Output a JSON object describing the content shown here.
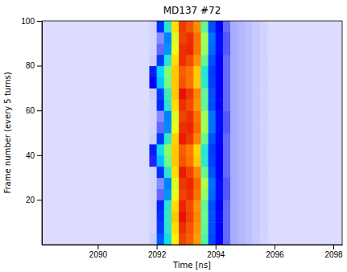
{
  "chart_data": {
    "type": "heatmap",
    "title": "MD137 #72",
    "x_label": "Time [ns]",
    "y_label": "Frame number (every 5 turns)",
    "xlim": [
      2088.1,
      2098.3
    ],
    "ylim": [
      0,
      100
    ],
    "xticks": [
      2090,
      2092,
      2094,
      2096,
      2098
    ],
    "yticks": [
      20,
      40,
      60,
      80,
      100
    ],
    "color_range": [
      0,
      1
    ],
    "x_edges": [
      2091.75,
      2092.0,
      2092.25,
      2092.5,
      2092.75,
      2093.0,
      2093.25,
      2093.5,
      2093.75,
      2094.0,
      2094.25,
      2094.5,
      2094.75,
      2095.0,
      2095.25,
      2095.5,
      2095.75
    ],
    "y_edges": [
      0,
      5,
      10,
      15,
      20,
      25,
      30,
      35,
      40,
      45,
      50,
      55,
      60,
      65,
      70,
      75,
      80,
      85,
      90,
      95,
      100
    ],
    "values": [
      [
        0.03,
        0.35,
        0.52,
        0.76,
        0.93,
        0.9,
        0.84,
        0.6,
        0.32,
        0.2,
        0.14,
        0.1,
        0.08,
        0.06,
        0.04,
        0.02
      ],
      [
        0.02,
        0.3,
        0.55,
        0.78,
        0.95,
        0.91,
        0.85,
        0.62,
        0.33,
        0.2,
        0.14,
        0.1,
        0.08,
        0.06,
        0.04,
        0.02
      ],
      [
        0.02,
        0.28,
        0.56,
        0.8,
        0.98,
        0.93,
        0.86,
        0.63,
        0.34,
        0.21,
        0.14,
        0.1,
        0.08,
        0.06,
        0.04,
        0.02
      ],
      [
        0.02,
        0.26,
        0.55,
        0.78,
        0.96,
        0.92,
        0.85,
        0.62,
        0.33,
        0.2,
        0.14,
        0.1,
        0.08,
        0.06,
        0.04,
        0.02
      ],
      [
        0.02,
        0.14,
        0.42,
        0.73,
        0.93,
        0.95,
        0.88,
        0.67,
        0.37,
        0.22,
        0.15,
        0.1,
        0.08,
        0.06,
        0.04,
        0.02
      ],
      [
        0.02,
        0.12,
        0.4,
        0.72,
        0.94,
        0.96,
        0.89,
        0.69,
        0.38,
        0.22,
        0.15,
        0.1,
        0.08,
        0.06,
        0.04,
        0.02
      ],
      [
        0.02,
        0.28,
        0.55,
        0.78,
        0.97,
        0.93,
        0.86,
        0.63,
        0.34,
        0.2,
        0.14,
        0.1,
        0.08,
        0.06,
        0.04,
        0.02
      ],
      [
        0.18,
        0.47,
        0.63,
        0.8,
        0.91,
        0.88,
        0.8,
        0.56,
        0.31,
        0.2,
        0.14,
        0.1,
        0.08,
        0.06,
        0.04,
        0.02
      ],
      [
        0.25,
        0.52,
        0.66,
        0.8,
        0.9,
        0.87,
        0.79,
        0.55,
        0.3,
        0.2,
        0.14,
        0.1,
        0.08,
        0.06,
        0.04,
        0.02
      ],
      [
        0.03,
        0.3,
        0.56,
        0.79,
        0.97,
        0.94,
        0.86,
        0.63,
        0.34,
        0.21,
        0.14,
        0.1,
        0.08,
        0.06,
        0.04,
        0.02
      ],
      [
        0.02,
        0.14,
        0.41,
        0.73,
        0.95,
        0.96,
        0.89,
        0.68,
        0.38,
        0.22,
        0.15,
        0.1,
        0.08,
        0.06,
        0.04,
        0.02
      ],
      [
        0.02,
        0.12,
        0.4,
        0.72,
        0.93,
        0.95,
        0.88,
        0.68,
        0.38,
        0.22,
        0.15,
        0.1,
        0.08,
        0.06,
        0.04,
        0.02
      ],
      [
        0.02,
        0.27,
        0.55,
        0.78,
        0.95,
        0.92,
        0.85,
        0.62,
        0.33,
        0.2,
        0.14,
        0.1,
        0.08,
        0.06,
        0.04,
        0.02
      ],
      [
        0.03,
        0.3,
        0.57,
        0.8,
        0.98,
        0.94,
        0.86,
        0.62,
        0.33,
        0.2,
        0.14,
        0.1,
        0.08,
        0.06,
        0.04,
        0.02
      ],
      [
        0.2,
        0.48,
        0.64,
        0.8,
        0.91,
        0.88,
        0.8,
        0.56,
        0.31,
        0.2,
        0.14,
        0.1,
        0.08,
        0.06,
        0.04,
        0.02
      ],
      [
        0.25,
        0.5,
        0.65,
        0.8,
        0.9,
        0.88,
        0.8,
        0.55,
        0.3,
        0.2,
        0.14,
        0.1,
        0.08,
        0.06,
        0.04,
        0.02
      ],
      [
        0.03,
        0.3,
        0.55,
        0.78,
        0.95,
        0.92,
        0.85,
        0.62,
        0.33,
        0.2,
        0.14,
        0.1,
        0.08,
        0.06,
        0.04,
        0.02
      ],
      [
        0.02,
        0.14,
        0.42,
        0.73,
        0.95,
        0.96,
        0.88,
        0.67,
        0.37,
        0.22,
        0.15,
        0.1,
        0.08,
        0.06,
        0.04,
        0.02
      ],
      [
        0.02,
        0.12,
        0.4,
        0.72,
        0.93,
        0.95,
        0.88,
        0.68,
        0.38,
        0.22,
        0.15,
        0.1,
        0.08,
        0.06,
        0.04,
        0.02
      ],
      [
        0.02,
        0.28,
        0.55,
        0.78,
        0.94,
        0.91,
        0.85,
        0.62,
        0.33,
        0.2,
        0.14,
        0.1,
        0.08,
        0.06,
        0.04,
        0.02
      ]
    ]
  }
}
